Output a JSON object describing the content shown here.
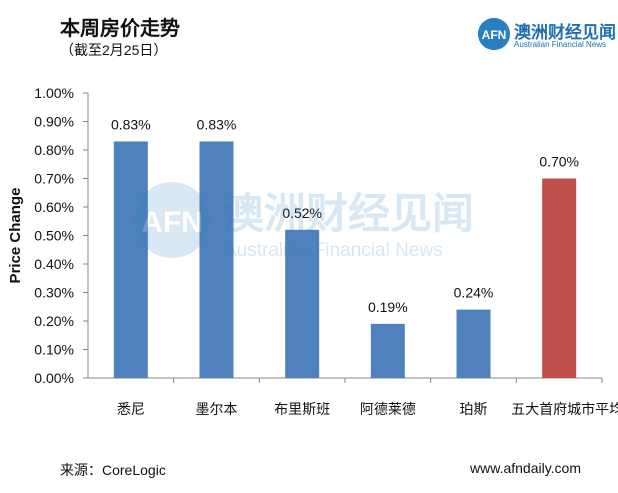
{
  "header": {
    "title": "本周房价走势",
    "subtitle": "（截至2月25日）"
  },
  "brand": {
    "logo_text": "AFN",
    "name": "澳洲财经见闻",
    "tagline": "Australian Financial News",
    "color": "#1f6fb4"
  },
  "watermark": {
    "logo_text": "AFN",
    "name": "澳洲财经见闻",
    "tagline": "Australian Financial News"
  },
  "footer": {
    "source": "来源：CoreLogic",
    "site": "www.afndaily.com"
  },
  "chart_data": {
    "type": "bar",
    "title": "本周房价走势",
    "ylabel": "Price Change",
    "xlabel": "",
    "categories": [
      "悉尼",
      "墨尔本",
      "布里斯班",
      "阿德莱德",
      "珀斯",
      "五大首府城市平均"
    ],
    "values": [
      0.83,
      0.83,
      0.52,
      0.19,
      0.24,
      0.7
    ],
    "value_labels": [
      "0.83%",
      "0.83%",
      "0.52%",
      "0.19%",
      "0.24%",
      "0.70%"
    ],
    "colors": [
      "#4f81bd",
      "#4f81bd",
      "#4f81bd",
      "#4f81bd",
      "#4f81bd",
      "#c0504d"
    ],
    "ylim": [
      0,
      1.0
    ],
    "yticks": [
      "0.00%",
      "0.10%",
      "0.20%",
      "0.30%",
      "0.40%",
      "0.50%",
      "0.60%",
      "0.70%",
      "0.80%",
      "0.90%",
      "1.00%"
    ],
    "grid": false,
    "legend": "none"
  }
}
